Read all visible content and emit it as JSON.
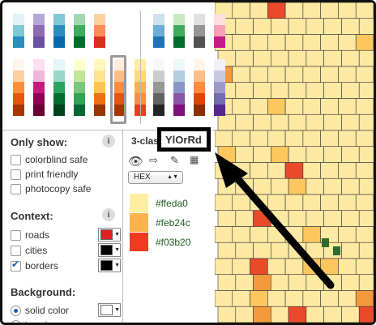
{
  "colors": {
    "yl": [
      "#ffeda0",
      "#feb24c",
      "#f03b20"
    ],
    "map_base": "#fde9a2",
    "map_mid": "#fcc75f",
    "map_hi": "#f49a3c",
    "map_red": "#e84a2a",
    "map_green": "#2e6b2e",
    "accent_check": "#1a5fb4"
  },
  "palettes": {
    "sequential_multi": [
      [
        "#e0f3f8",
        "#7fc8d6",
        "#2b8cbe"
      ],
      [
        "#b5a7d6",
        "#8c6bb1",
        "#6a51a3"
      ],
      [
        "#7fc8d6",
        "#2b8cbe",
        "#0868ac"
      ],
      [
        "#a3d9b1",
        "#41ab5d",
        "#006d2c"
      ],
      [
        "#fdd0a2",
        "#fc8d59",
        "#d7301f"
      ],
      [
        "#fcc5c0",
        "#f768a1",
        "#ae017e"
      ],
      [
        "#a8d5a2",
        "#41ab5d",
        "#006837"
      ],
      [
        "#bad3e8",
        "#6baed6",
        "#2171b5"
      ]
    ],
    "sequential_single": [
      [
        "#fff5eb",
        "#fdd0a2",
        "#fd8d3c",
        "#e6550d",
        "#a63603"
      ],
      [
        "#fde0ef",
        "#f1b6da",
        "#c51b7d",
        "#8e0152",
        "#6a0032"
      ],
      [
        "#e5f5f9",
        "#99d8c9",
        "#2ca25f",
        "#006d2c",
        "#00441b"
      ],
      [
        "#ffffcc",
        "#c2e699",
        "#78c679",
        "#31a354",
        "#006837"
      ],
      [
        "#fff7bc",
        "#fee391",
        "#fec44f",
        "#ec7014",
        "#993404"
      ],
      [
        "#feedde",
        "#fdbe85",
        "#fd8d3c",
        "#e6550d",
        "#a63603"
      ],
      [
        "#ffeda0",
        "#fed976",
        "#feb24c",
        "#fd8d3c",
        "#f03b20"
      ]
    ],
    "diverging": [
      [
        "#cfe0ef",
        "#6baed6",
        "#2171b5"
      ],
      [
        "#c7e9c0",
        "#41ab5d",
        "#006d2c"
      ],
      [
        "#e0e0e0",
        "#969696",
        "#525252"
      ],
      [
        "#fde0dd",
        "#fa9fb5",
        "#c51b8a"
      ]
    ],
    "diverging_lower": [
      [
        "#f7f7f7",
        "#cccccc",
        "#969696",
        "#636363",
        "#252525"
      ],
      [
        "#edf8fb",
        "#b3cde3",
        "#8c96c6",
        "#8856a7",
        "#810f7c"
      ],
      [
        "#fff5eb",
        "#fdbe85",
        "#fd8d3c",
        "#d94701",
        "#8c2d04"
      ],
      [
        "#f2f0f7",
        "#cbc9e2",
        "#9e9ac8",
        "#756bb1",
        "#54278f"
      ]
    ]
  },
  "panel": {
    "only_show": {
      "title": "Only show:",
      "info": "i",
      "options": [
        {
          "label": "colorblind safe",
          "checked": false
        },
        {
          "label": "print friendly",
          "checked": false
        },
        {
          "label": "photocopy safe",
          "checked": false
        }
      ]
    },
    "context": {
      "title": "Context:",
      "info": "i",
      "options": [
        {
          "label": "roads",
          "checked": false,
          "color": "#e02020"
        },
        {
          "label": "cities",
          "checked": false,
          "color": "#000000"
        },
        {
          "label": "borders",
          "checked": true,
          "color": "#000000"
        }
      ]
    },
    "background": {
      "title": "Background:",
      "options": [
        {
          "label": "solid color",
          "selected": true,
          "color": "#ffffff"
        },
        {
          "label": "terrain",
          "selected": false
        }
      ]
    }
  },
  "scheme": {
    "classes_label": "3-clas",
    "name": "YlOrRd",
    "format": "HEX",
    "codes": [
      "#ffeda0",
      "#feb24c",
      "#f03b20"
    ]
  },
  "icons": [
    "eye-icon",
    "export-icon",
    "pen-icon",
    "spreadsheet-icon",
    "e-icon"
  ]
}
